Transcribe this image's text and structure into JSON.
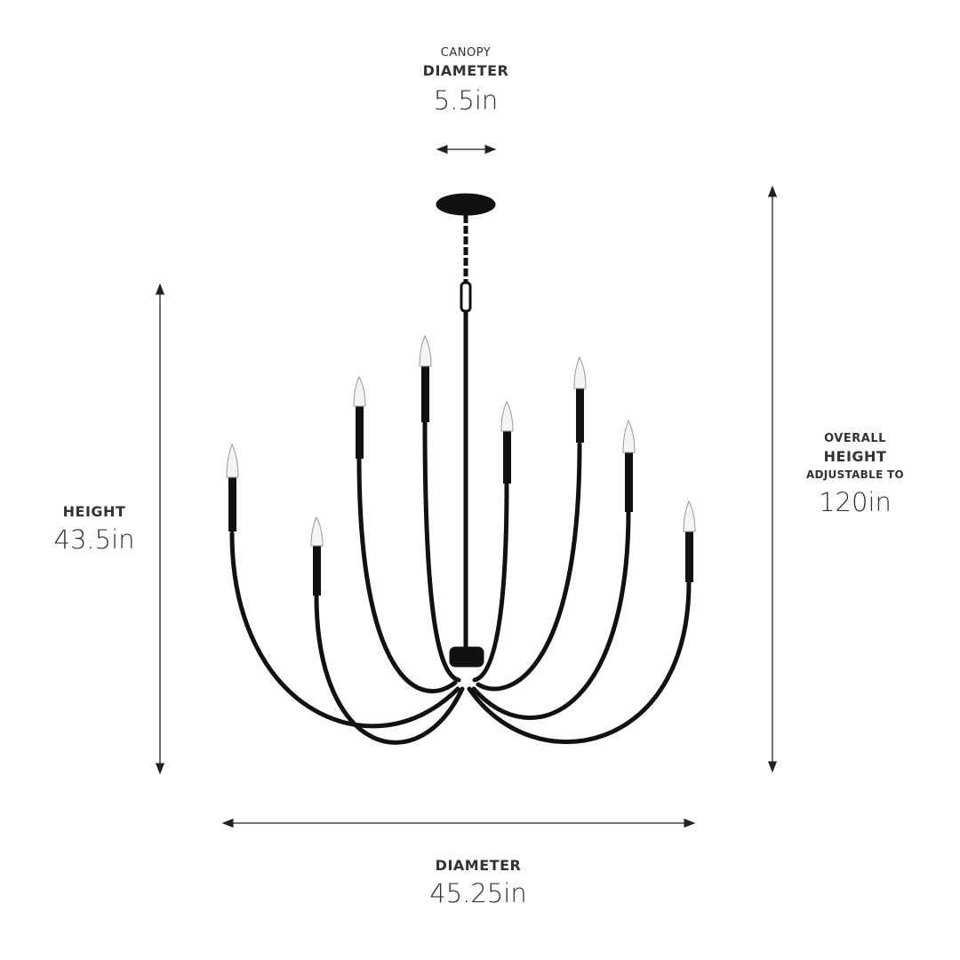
{
  "canopy": {
    "line1": "CANOPY",
    "line2": "DIAMETER",
    "value": "5.5in"
  },
  "height": {
    "label": "HEIGHT",
    "value": "43.5in"
  },
  "overall_height": {
    "line1": "OVERALL",
    "line2": "HEIGHT",
    "line3": "ADJUSTABLE TO",
    "value": "120in"
  },
  "diameter": {
    "label": "DIAMETER",
    "value": "45.25in"
  },
  "colors": {
    "fixture": "#111111",
    "text": "#333333",
    "arrow": "#222222"
  }
}
